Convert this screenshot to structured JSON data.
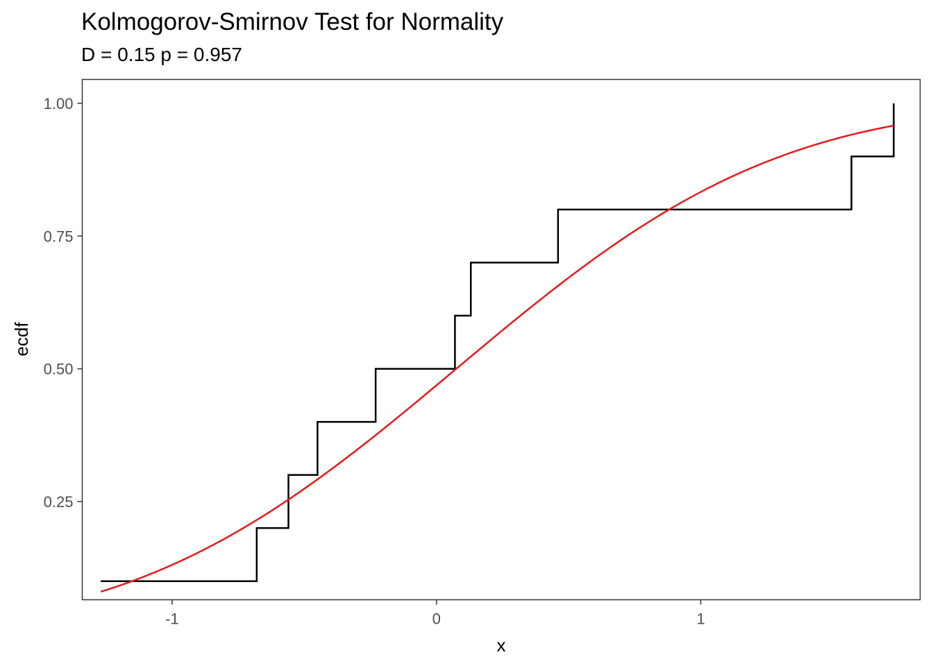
{
  "chart_data": {
    "type": "line",
    "title": "Kolmogorov-Smirnov Test for Normality",
    "subtitle": "D = 0.15 p = 0.957",
    "xlabel": "x",
    "ylabel": "ecdf",
    "xlim": [
      -1.34,
      1.83
    ],
    "ylim": [
      0.065,
      1.045
    ],
    "x_ticks": [
      -1,
      0,
      1
    ],
    "x_tick_labels": [
      "-1",
      "0",
      "1"
    ],
    "y_ticks": [
      0.25,
      0.5,
      0.75,
      1.0
    ],
    "y_tick_labels": [
      "0.25",
      "0.50",
      "0.75",
      "1.00"
    ],
    "grid": false,
    "series": [
      {
        "kind": "step",
        "color": "#000000",
        "x": [
          -1.27,
          -0.68,
          -0.56,
          -0.45,
          -0.23,
          0.07,
          0.13,
          0.46,
          1.57,
          1.73
        ],
        "y": [
          0.1,
          0.2,
          0.3,
          0.4,
          0.5,
          0.6,
          0.7,
          0.8,
          0.9,
          1.0
        ]
      },
      {
        "kind": "curve",
        "color": "#e41a1c",
        "distribution": "normal",
        "mean": 0.0748,
        "sd": 0.9573,
        "x_range": [
          -1.27,
          1.73
        ]
      }
    ]
  }
}
